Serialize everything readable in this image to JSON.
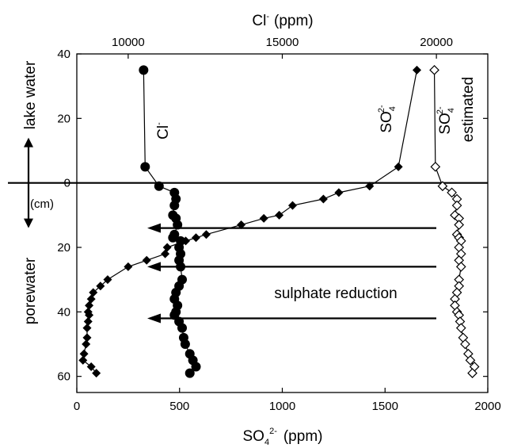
{
  "chart_data": {
    "type": "scatter",
    "bottom_axis": {
      "label": "SO",
      "label_sub": "4",
      "label_sup": "2-",
      "unit": "(ppm)",
      "range": [
        0,
        2000
      ],
      "ticks": [
        0,
        500,
        1000,
        1500,
        2000
      ]
    },
    "top_axis": {
      "label": "Cl",
      "label_sup": "-",
      "unit": "(ppm)",
      "range": [
        8333,
        21667
      ],
      "ticks": [
        10000,
        15000,
        20000
      ]
    },
    "y_axis": {
      "range": [
        65,
        -40
      ],
      "ticks": [
        40,
        20,
        0,
        20,
        40,
        60
      ],
      "tick_values": [
        -40,
        -20,
        0,
        20,
        40,
        60
      ],
      "unit": "(cm)"
    },
    "zero_line": 0,
    "region_labels": {
      "upper": "lake water",
      "lower": "porewater"
    },
    "annotation": "sulphate reduction",
    "arrow_depths": [
      14,
      26,
      42
    ],
    "series": [
      {
        "name": "Cl",
        "name_sup": "-",
        "axis": "top",
        "marker": "circle-filled",
        "line": true,
        "points": [
          [
            10500,
            -35
          ],
          [
            10550,
            -5
          ],
          [
            11000,
            1
          ],
          [
            11500,
            3
          ],
          [
            11550,
            5
          ],
          [
            11500,
            7
          ],
          [
            11450,
            10
          ],
          [
            11550,
            11
          ],
          [
            11600,
            13
          ],
          [
            11500,
            16
          ],
          [
            11450,
            17
          ],
          [
            11700,
            18
          ],
          [
            11650,
            20
          ],
          [
            11700,
            22
          ],
          [
            11650,
            24
          ],
          [
            11700,
            26
          ],
          [
            11750,
            30
          ],
          [
            11650,
            32
          ],
          [
            11550,
            34
          ],
          [
            11500,
            36
          ],
          [
            11600,
            38
          ],
          [
            11550,
            40
          ],
          [
            11500,
            41
          ],
          [
            11650,
            43
          ],
          [
            11750,
            45
          ],
          [
            11800,
            48
          ],
          [
            11850,
            50
          ],
          [
            12000,
            53
          ],
          [
            12100,
            55
          ],
          [
            12200,
            57
          ],
          [
            12000,
            59
          ]
        ]
      },
      {
        "name": "SO",
        "name_sub": "4",
        "name_sup": "2-",
        "axis": "bottom",
        "marker": "diamond-filled",
        "line": true,
        "points": [
          [
            1655,
            -35
          ],
          [
            1565,
            -5
          ],
          [
            1425,
            1
          ],
          [
            1275,
            3
          ],
          [
            1200,
            5
          ],
          [
            1050,
            7
          ],
          [
            985,
            10
          ],
          [
            910,
            11
          ],
          [
            800,
            13
          ],
          [
            630,
            16
          ],
          [
            580,
            17
          ],
          [
            530,
            18
          ],
          [
            440,
            20
          ],
          [
            430,
            22
          ],
          [
            340,
            24
          ],
          [
            250,
            26
          ],
          [
            150,
            30
          ],
          [
            115,
            32
          ],
          [
            80,
            34
          ],
          [
            70,
            36
          ],
          [
            60,
            38
          ],
          [
            55,
            40
          ],
          [
            60,
            41
          ],
          [
            55,
            43
          ],
          [
            50,
            45
          ],
          [
            50,
            48
          ],
          [
            45,
            50
          ],
          [
            35,
            53
          ],
          [
            30,
            55
          ],
          [
            70,
            57
          ],
          [
            95,
            59
          ]
        ]
      },
      {
        "name": "SO",
        "name_sub": "4",
        "name_sup": "2-",
        "name_suffix": "estimated",
        "axis": "bottom",
        "marker": "diamond-open",
        "line": true,
        "points": [
          [
            1740,
            -35
          ],
          [
            1745,
            -5
          ],
          [
            1780,
            1
          ],
          [
            1825,
            3
          ],
          [
            1850,
            5
          ],
          [
            1850,
            7
          ],
          [
            1840,
            10
          ],
          [
            1860,
            11
          ],
          [
            1860,
            13
          ],
          [
            1850,
            16
          ],
          [
            1860,
            17
          ],
          [
            1870,
            18
          ],
          [
            1860,
            20
          ],
          [
            1870,
            22
          ],
          [
            1860,
            24
          ],
          [
            1870,
            26
          ],
          [
            1860,
            30
          ],
          [
            1860,
            32
          ],
          [
            1850,
            34
          ],
          [
            1840,
            36
          ],
          [
            1840,
            38
          ],
          [
            1850,
            40
          ],
          [
            1860,
            41
          ],
          [
            1865,
            43
          ],
          [
            1870,
            45
          ],
          [
            1880,
            48
          ],
          [
            1890,
            50
          ],
          [
            1905,
            53
          ],
          [
            1915,
            55
          ],
          [
            1935,
            57
          ],
          [
            1925,
            59
          ]
        ]
      }
    ]
  }
}
